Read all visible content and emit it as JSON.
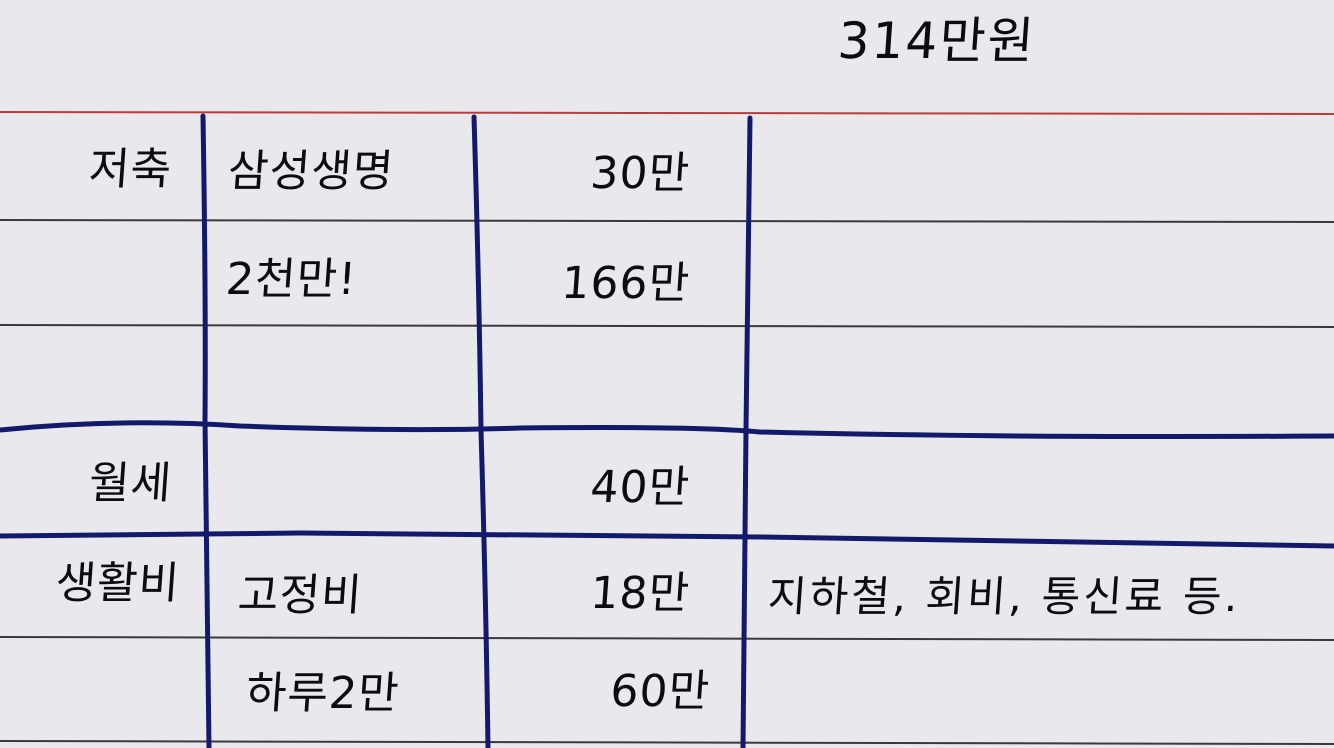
{
  "header": {
    "total": "314만원"
  },
  "rows": [
    {
      "category": "저축",
      "item": "삼성생명",
      "amount": "30만",
      "note": ""
    },
    {
      "category": "",
      "item": "2천만!",
      "amount": "166만",
      "note": ""
    },
    {
      "category": "",
      "item": "",
      "amount": "",
      "note": ""
    },
    {
      "category": "월세",
      "item": "",
      "amount": "40만",
      "note": ""
    },
    {
      "category": "생활비",
      "item": "고정비",
      "amount": "18만",
      "note": "지하철, 회비, 통신료 등."
    },
    {
      "category": "",
      "item": "하루2만",
      "amount": "60만",
      "note": ""
    }
  ],
  "colors": {
    "paper": "#e9e8ec",
    "ruled_line": "#3a3a3a",
    "margin_line": "#c0393b",
    "ink": "#0b0b10",
    "pen_blue": "#141a6b"
  }
}
